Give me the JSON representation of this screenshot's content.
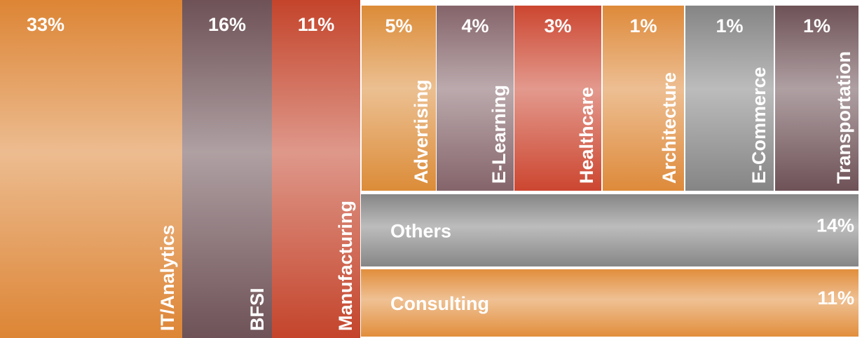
{
  "chart_data": {
    "type": "treemap",
    "categories": [
      "IT/Analytics",
      "BFSI",
      "Manufacturing",
      "Advertising",
      "E-Learning",
      "Healthcare",
      "Architecture",
      "E-Commerce",
      "Transportation",
      "Others",
      "Consulting"
    ],
    "values": [
      33,
      16,
      11,
      5,
      4,
      3,
      1,
      1,
      1,
      14,
      11
    ],
    "value_labels": [
      "33%",
      "16%",
      "11%",
      "5%",
      "4%",
      "3%",
      "1%",
      "1%",
      "1%",
      "14%",
      "11%"
    ],
    "colors": [
      "#dd8535",
      "#6e5257",
      "#c4442b",
      "#dc8c38",
      "#84646a",
      "#cc4630",
      "#de8a3a",
      "#858585",
      "#6e5257",
      "#868686",
      "#e28e3c"
    ]
  }
}
